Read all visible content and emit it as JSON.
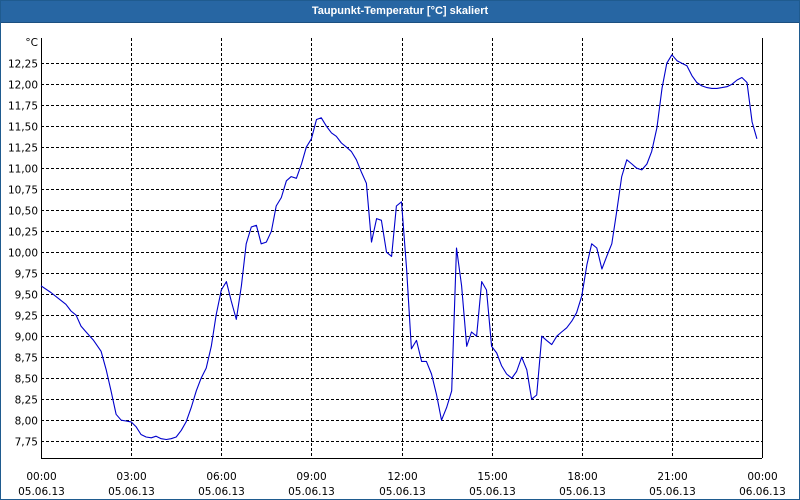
{
  "chart_data": {
    "type": "line",
    "title": "Taupunkt-Temperatur [°C] skaliert",
    "ylabel": "°C",
    "ylim": [
      7.55,
      12.55
    ],
    "xlim": [
      0,
      24
    ],
    "yticks": [
      {
        "value": 7.75,
        "label": "7,75"
      },
      {
        "value": 8.0,
        "label": "8,00"
      },
      {
        "value": 8.25,
        "label": "8,25"
      },
      {
        "value": 8.5,
        "label": "8,50"
      },
      {
        "value": 8.75,
        "label": "8,75"
      },
      {
        "value": 9.0,
        "label": "9,00"
      },
      {
        "value": 9.25,
        "label": "9,25"
      },
      {
        "value": 9.5,
        "label": "9,50"
      },
      {
        "value": 9.75,
        "label": "9,75"
      },
      {
        "value": 10.0,
        "label": "10,00"
      },
      {
        "value": 10.25,
        "label": "10,25"
      },
      {
        "value": 10.5,
        "label": "10,50"
      },
      {
        "value": 10.75,
        "label": "10,75"
      },
      {
        "value": 11.0,
        "label": "11,00"
      },
      {
        "value": 11.25,
        "label": "11,25"
      },
      {
        "value": 11.5,
        "label": "11,50"
      },
      {
        "value": 11.75,
        "label": "11,75"
      },
      {
        "value": 12.0,
        "label": "12,00"
      },
      {
        "value": 12.25,
        "label": "12,25"
      }
    ],
    "xticks": [
      {
        "value": 0,
        "time": "00:00",
        "date": "05.06.13"
      },
      {
        "value": 3,
        "time": "03:00",
        "date": "05.06.13"
      },
      {
        "value": 6,
        "time": "06:00",
        "date": "05.06.13"
      },
      {
        "value": 9,
        "time": "09:00",
        "date": "05.06.13"
      },
      {
        "value": 12,
        "time": "12:00",
        "date": "05.06.13"
      },
      {
        "value": 15,
        "time": "15:00",
        "date": "05.06.13"
      },
      {
        "value": 18,
        "time": "18:00",
        "date": "05.06.13"
      },
      {
        "value": 21,
        "time": "21:00",
        "date": "05.06.13"
      },
      {
        "value": 24,
        "time": "00:00",
        "date": "06.06.13"
      }
    ],
    "grid": true,
    "series": [
      {
        "color": "#0000cc",
        "x": [
          0.0,
          0.33,
          0.58,
          0.83,
          1.0,
          1.17,
          1.33,
          1.5,
          1.75,
          2.0,
          2.17,
          2.33,
          2.5,
          2.67,
          2.83,
          3.0,
          3.17,
          3.33,
          3.5,
          3.67,
          3.83,
          4.0,
          4.17,
          4.33,
          4.5,
          4.67,
          4.83,
          5.0,
          5.17,
          5.33,
          5.5,
          5.67,
          5.83,
          6.0,
          6.17,
          6.33,
          6.5,
          6.67,
          6.83,
          7.0,
          7.17,
          7.33,
          7.5,
          7.67,
          7.83,
          8.0,
          8.17,
          8.33,
          8.5,
          8.67,
          8.83,
          9.0,
          9.17,
          9.33,
          9.5,
          9.67,
          9.83,
          10.0,
          10.17,
          10.33,
          10.5,
          10.67,
          10.83,
          11.0,
          11.17,
          11.33,
          11.5,
          11.67,
          11.83,
          12.0,
          12.17,
          12.33,
          12.5,
          12.67,
          12.83,
          13.0,
          13.17,
          13.33,
          13.5,
          13.67,
          13.83,
          14.0,
          14.17,
          14.33,
          14.5,
          14.67,
          14.83,
          15.0,
          15.17,
          15.33,
          15.5,
          15.67,
          15.83,
          16.0,
          16.17,
          16.33,
          16.5,
          16.67,
          16.83,
          17.0,
          17.17,
          17.33,
          17.5,
          17.67,
          17.83,
          18.0,
          18.17,
          18.33,
          18.5,
          18.67,
          18.83,
          19.0,
          19.17,
          19.33,
          19.5,
          19.67,
          19.83,
          20.0,
          20.17,
          20.33,
          20.5,
          20.67,
          20.83,
          21.0,
          21.17,
          21.33,
          21.5,
          21.67,
          21.83,
          22.0,
          22.17,
          22.33,
          22.5,
          22.67,
          22.83,
          23.0,
          23.17,
          23.33,
          23.5,
          23.67,
          23.83
        ],
        "y": [
          9.6,
          9.52,
          9.45,
          9.38,
          9.3,
          9.25,
          9.12,
          9.05,
          8.95,
          8.82,
          8.6,
          8.35,
          8.07,
          8.0,
          7.99,
          7.98,
          7.92,
          7.83,
          7.8,
          7.79,
          7.81,
          7.78,
          7.77,
          7.78,
          7.8,
          7.88,
          7.98,
          8.15,
          8.35,
          8.5,
          8.62,
          8.88,
          9.25,
          9.55,
          9.65,
          9.42,
          9.2,
          9.6,
          10.1,
          10.3,
          10.32,
          10.1,
          10.12,
          10.25,
          10.55,
          10.65,
          10.85,
          10.9,
          10.88,
          11.05,
          11.25,
          11.35,
          11.58,
          11.6,
          11.5,
          11.42,
          11.38,
          11.3,
          11.25,
          11.2,
          11.1,
          10.95,
          10.82,
          10.12,
          10.4,
          10.38,
          10.0,
          9.95,
          10.55,
          10.6,
          9.8,
          8.85,
          8.95,
          8.7,
          8.7,
          8.55,
          8.3,
          8.0,
          8.15,
          8.35,
          10.05,
          9.6,
          8.88,
          9.05,
          9.0,
          9.65,
          9.55,
          8.88,
          8.8,
          8.65,
          8.55,
          8.5,
          8.58,
          8.75,
          8.6,
          8.25,
          8.3,
          9.0,
          8.95,
          8.9,
          9.0,
          9.05,
          9.1,
          9.18,
          9.28,
          9.48,
          9.85,
          10.1,
          10.05,
          9.8,
          9.95,
          10.1,
          10.5,
          10.9,
          11.1,
          11.05,
          11.0,
          10.98,
          11.05,
          11.2,
          11.48,
          11.95,
          12.25,
          12.35,
          12.28,
          12.25,
          12.22,
          12.1,
          12.02,
          11.98,
          11.96,
          11.95,
          11.95,
          11.96,
          11.97,
          12.0,
          12.05,
          12.08,
          12.02,
          11.55,
          11.35
        ]
      }
    ]
  }
}
